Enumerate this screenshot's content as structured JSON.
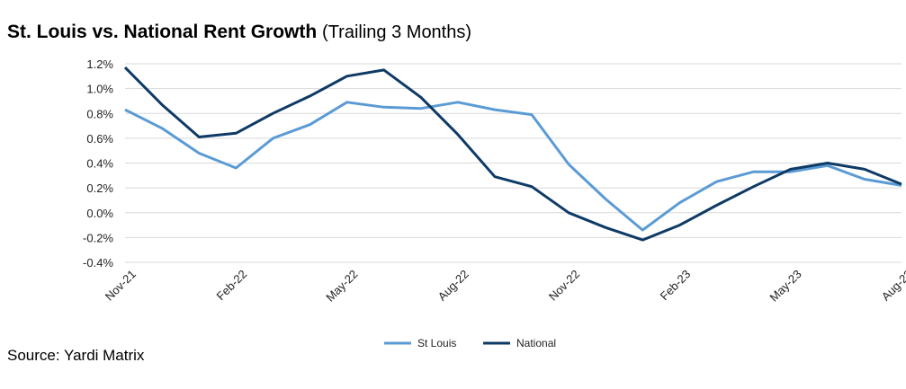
{
  "title": "St. Louis vs. National Rent Growth",
  "subtitle": "(Trailing 3 Months)",
  "source": "Source: Yardi Matrix",
  "colors": {
    "st_louis": "#5b9bd5",
    "national": "#0e3a66",
    "grid": "#d9d9d9"
  },
  "chart_data": {
    "type": "line",
    "title": "St. Louis vs. National Rent Growth",
    "subtitle": "(Trailing 3 Months)",
    "x": [
      "Nov-21",
      "Dec-21",
      "Jan-22",
      "Feb-22",
      "Mar-22",
      "Apr-22",
      "May-22",
      "Jun-22",
      "Jul-22",
      "Aug-22",
      "Sep-22",
      "Oct-22",
      "Nov-22",
      "Dec-22",
      "Jan-23",
      "Feb-23",
      "Mar-23",
      "Apr-23",
      "May-23",
      "Jun-23",
      "Jul-23",
      "Aug-23"
    ],
    "x_tick_labels": [
      "Nov-21",
      "Feb-22",
      "May-22",
      "Aug-22",
      "Nov-22",
      "Feb-23",
      "May-23",
      "Aug-23"
    ],
    "series": [
      {
        "name": "St Louis",
        "values": [
          0.83,
          0.68,
          0.48,
          0.36,
          0.6,
          0.71,
          0.89,
          0.85,
          0.84,
          0.89,
          0.83,
          0.79,
          0.39,
          0.11,
          -0.14,
          0.08,
          0.25,
          0.33,
          0.33,
          0.38,
          0.27,
          0.22
        ]
      },
      {
        "name": "National",
        "values": [
          1.17,
          0.87,
          0.61,
          0.64,
          0.8,
          0.94,
          1.1,
          1.15,
          0.93,
          0.63,
          0.29,
          0.21,
          0.0,
          -0.12,
          -0.22,
          -0.1,
          0.06,
          0.21,
          0.35,
          0.4,
          0.35,
          0.23
        ]
      }
    ],
    "y_ticks": [
      "1.2%",
      "1.0%",
      "0.8%",
      "0.6%",
      "0.4%",
      "0.2%",
      "0.0%",
      "-0.2%",
      "-0.4%"
    ],
    "ylim": [
      -0.4,
      1.2
    ],
    "grid": true,
    "legend": "bottom-center"
  }
}
